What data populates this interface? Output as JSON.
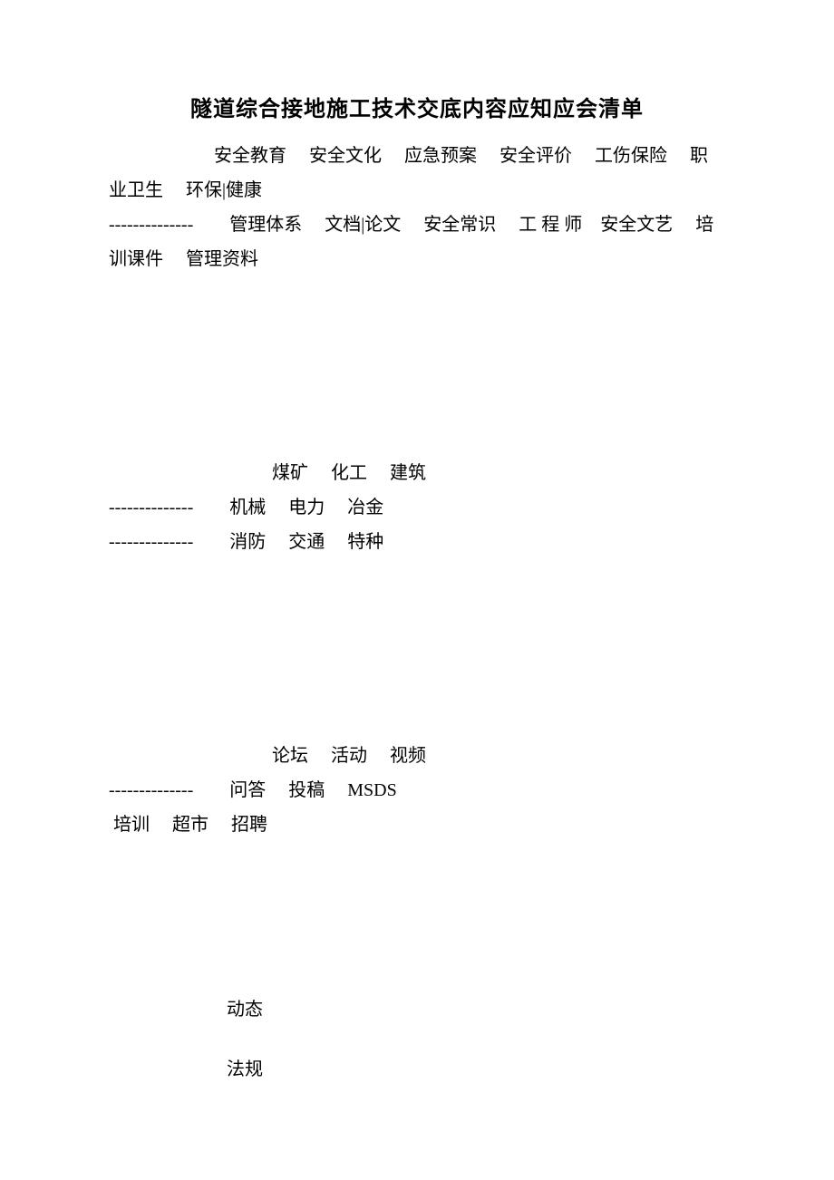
{
  "title": "隧道综合接地施工技术交底内容应知应会清单",
  "section1": {
    "line1": "　　安全教育　 安全文化　 应急预案　 安全评价　 工伤保险　 职业卫生　 环保|健康",
    "line2": "--------------　　管理体系　 文档|论文　 安全常识　 工 程 师　安全文艺　 培训课件　 管理资料"
  },
  "section2": {
    "line1": "煤矿　 化工　 建筑",
    "line2": "--------------　　机械　 电力　 冶金",
    "line3": "--------------　　消防　 交通　 特种"
  },
  "section3": {
    "line1": "论坛　 活动　 视频",
    "line2": "--------------　　问答　 投稿　 MSDS",
    "line3": " 培训　 超市　 招聘"
  },
  "footer": {
    "item1": "动态",
    "item2": "法规"
  }
}
